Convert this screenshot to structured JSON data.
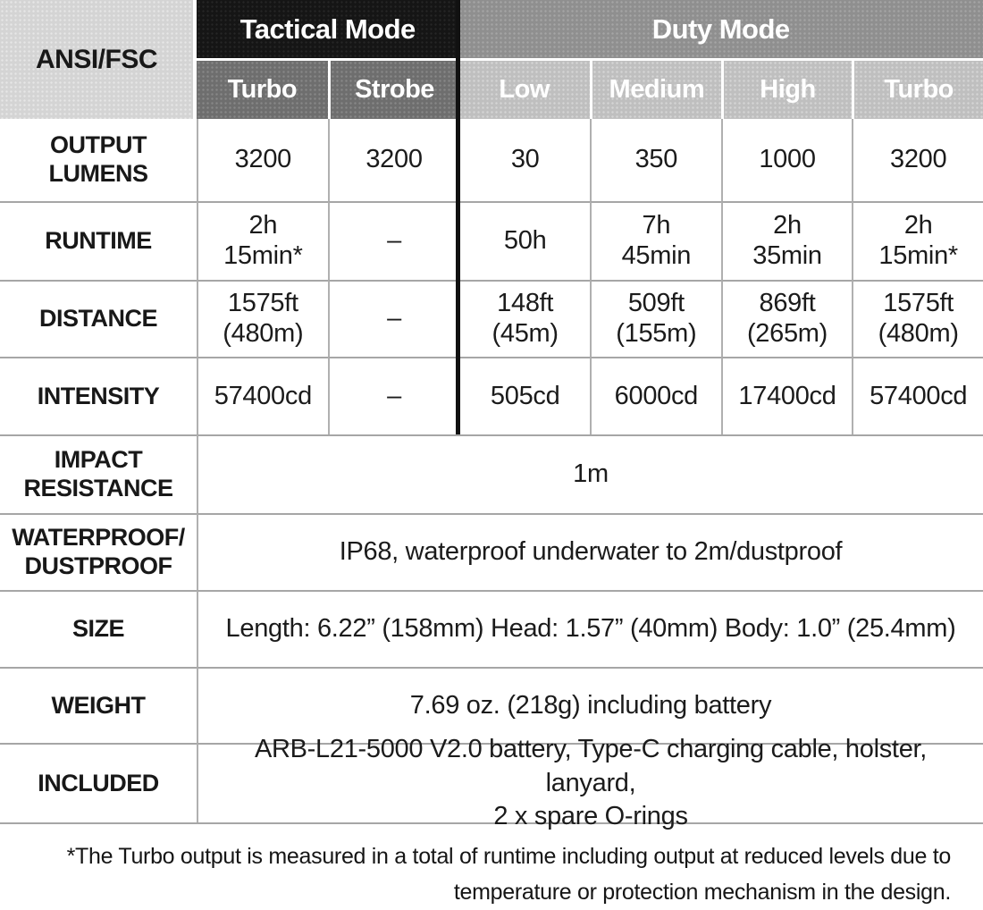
{
  "header": {
    "corner": "ANSI/FSC",
    "tactical": "Tactical Mode",
    "duty": "Duty Mode",
    "columns": [
      "Turbo",
      "Strobe",
      "Low",
      "Medium",
      "High",
      "Turbo"
    ]
  },
  "rows": {
    "lumens": {
      "label": [
        "OUTPUT",
        "LUMENS"
      ],
      "values": [
        "3200",
        "3200",
        "30",
        "350",
        "1000",
        "3200"
      ]
    },
    "runtime": {
      "label": "RUNTIME",
      "values": [
        [
          "2h",
          "15min*"
        ],
        "–",
        "50h",
        [
          "7h",
          "45min"
        ],
        [
          "2h",
          "35min"
        ],
        [
          "2h",
          "15min*"
        ]
      ]
    },
    "distance": {
      "label": "DISTANCE",
      "values": [
        [
          "1575ft",
          "(480m)"
        ],
        "–",
        [
          "148ft",
          "(45m)"
        ],
        [
          "509ft",
          "(155m)"
        ],
        [
          "869ft",
          "(265m)"
        ],
        [
          "1575ft",
          "(480m)"
        ]
      ]
    },
    "intensity": {
      "label": "INTENSITY",
      "values": [
        "57400cd",
        "–",
        "505cd",
        "6000cd",
        "17400cd",
        "57400cd"
      ]
    },
    "impact": {
      "label": [
        "IMPACT",
        "RESISTANCE"
      ],
      "value": "1m"
    },
    "waterproof": {
      "label": [
        "WATERPROOF/",
        "DUSTPROOF"
      ],
      "value": "IP68, waterproof underwater to 2m/dustproof"
    },
    "size": {
      "label": "SIZE",
      "value": "Length: 6.22” (158mm)  Head: 1.57” (40mm)  Body: 1.0” (25.4mm)"
    },
    "weight": {
      "label": "WEIGHT",
      "value": "7.69 oz. (218g) including battery"
    },
    "included": {
      "label": "INCLUDED",
      "value": [
        "ARB-L21-5000 V2.0 battery, Type-C charging cable, holster, lanyard,",
        "2 x spare O-rings"
      ]
    }
  },
  "footnote": [
    "*The Turbo output is measured in a total of runtime including output at reduced levels due to",
    "temperature or protection mechanism in the design."
  ],
  "colors": {
    "tactical_header_bg": "#151515",
    "duty_header_bg": "#8f8f8f",
    "tactical_sub_bg": "#6e6e6e",
    "duty_sub_bg": "#bfbfbf",
    "corner_bg": "#d4d4d4",
    "grid_line": "#a6a6a6",
    "text": "#1b1b1b"
  }
}
